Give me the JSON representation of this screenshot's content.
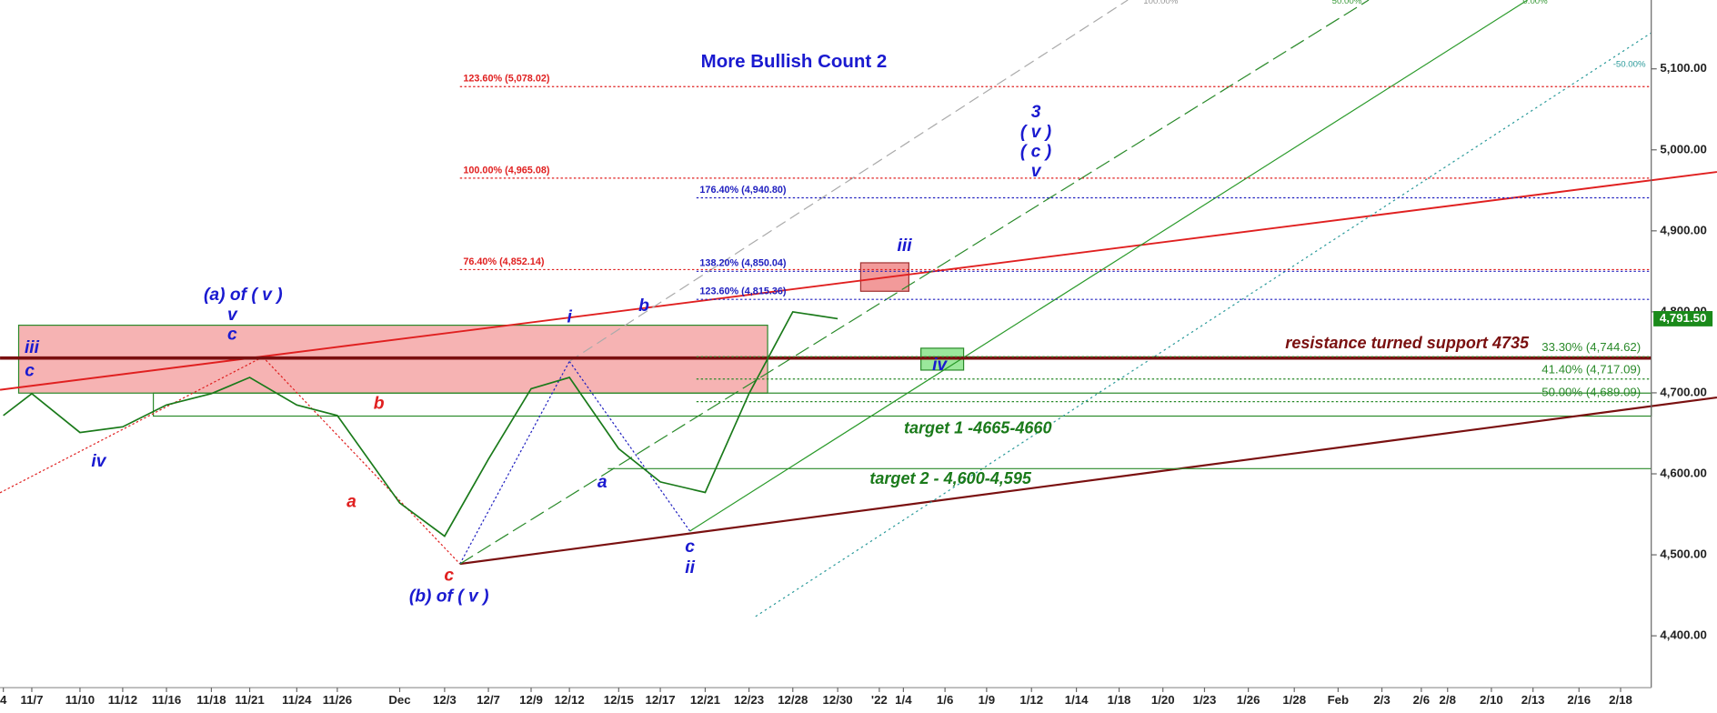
{
  "chart_data": {
    "type": "line",
    "title": "More Bullish Count 2",
    "categories": [
      "4",
      "11/7",
      "11/10",
      "11/12",
      "11/16",
      "11/18",
      "11/21",
      "11/24",
      "11/26",
      "Dec",
      "12/3",
      "12/7",
      "12/9",
      "12/12",
      "12/15",
      "12/17",
      "12/21",
      "12/23",
      "12/28",
      "12/30",
      "'22",
      "1/4",
      "1/6",
      "1/9",
      "1/12",
      "1/14",
      "1/18",
      "1/20",
      "1/23",
      "1/26",
      "1/28",
      "Feb",
      "2/3",
      "2/6",
      "2/8",
      "2/10",
      "2/13",
      "2/16",
      "2/18"
    ],
    "series": [
      {
        "name": "S&P 500",
        "color": "#1a7a1a",
        "values": [
          4672,
          4699,
          4651,
          4658,
          4685,
          4699,
          4719,
          4685,
          4672,
          4564,
          4523,
          4618,
          4705,
          4719,
          4631,
          4590,
          4577,
          4699,
          4800,
          4791.5,
          null,
          null,
          null,
          null,
          null,
          null,
          null,
          null,
          null,
          null,
          null,
          null,
          null,
          null,
          null,
          null,
          null,
          null,
          null
        ]
      }
    ],
    "last_price": {
      "value": 4791.5,
      "label": "4,791.50"
    },
    "ylim": [
      4336,
      5185
    ],
    "yticks": [
      {
        "value": 4400,
        "label": "4,400.00"
      },
      {
        "value": 4500,
        "label": "4,500.00"
      },
      {
        "value": 4600,
        "label": "4,600.00"
      },
      {
        "value": 4700,
        "label": "4,700.00"
      },
      {
        "value": 4800,
        "label": "4,800.00"
      },
      {
        "value": 4900,
        "label": "4,900.00"
      },
      {
        "value": 5000,
        "label": "5,000.00"
      },
      {
        "value": 5100,
        "label": "5,100.00"
      }
    ],
    "fib_levels": [
      {
        "label": "123.60% (5,078.02)",
        "value": 5078.02,
        "color": "#e02020"
      },
      {
        "label": "100.00% (4,965.08)",
        "value": 4965.08,
        "color": "#e02020"
      },
      {
        "label": "76.40% (4,852.14)",
        "value": 4852.14,
        "color": "#e02020"
      },
      {
        "label": "176.40% (4,940.80)",
        "value": 4940.8,
        "color": "#2020c0"
      },
      {
        "label": "138.20% (4,850.04)",
        "value": 4850.04,
        "color": "#2020c0"
      },
      {
        "label": "123.60% (4,815.36)",
        "value": 4815.36,
        "color": "#2020c0"
      },
      {
        "label": "33.30% (4,744.62)",
        "value": 4744.62,
        "color": "#2a8a2a"
      },
      {
        "label": "41.40% (4,717.09)",
        "value": 4717.09,
        "color": "#2a8a2a"
      },
      {
        "label": "50.00% (4,689.09)",
        "value": 4689.09,
        "color": "#2a8a2a"
      }
    ],
    "annotations": [
      {
        "text": "resistance turned support 4735",
        "color": "#7a1010"
      },
      {
        "text": "target 1 -4665-4660",
        "color": "#1a7a1a"
      },
      {
        "text": "target 2 - 4,600-4,595",
        "color": "#1a7a1a"
      }
    ],
    "channel_labels": [
      {
        "text": "100.00%",
        "color": "#999999"
      },
      {
        "text": "50.00%",
        "color": "#3a9a3a"
      },
      {
        "text": "0.00%",
        "color": "#3a9a3a"
      },
      {
        "text": "-50.00%",
        "color": "#2a9a9a"
      }
    ],
    "wave_labels": [
      {
        "text": "iii",
        "color": "#1a1ad0"
      },
      {
        "text": "c",
        "color": "#1a1ad0"
      },
      {
        "text": "iv",
        "color": "#1a1ad0"
      },
      {
        "text": "(a) of ( v )",
        "color": "#1a1ad0"
      },
      {
        "text": "v",
        "color": "#1a1ad0"
      },
      {
        "text": "c",
        "color": "#1a1ad0"
      },
      {
        "text": "i",
        "color": "#1a1ad0"
      },
      {
        "text": "b",
        "color": "#1a1ad0"
      },
      {
        "text": "a",
        "color": "#1a1ad0"
      },
      {
        "text": "c",
        "color": "#1a1ad0"
      },
      {
        "text": "ii",
        "color": "#1a1ad0"
      },
      {
        "text": "(b) of ( v )",
        "color": "#1a1ad0"
      },
      {
        "text": "iii",
        "color": "#1a1ad0"
      },
      {
        "text": "3",
        "color": "#1a1ad0"
      },
      {
        "text": "( v )",
        "color": "#1a1ad0"
      },
      {
        "text": "( c )",
        "color": "#1a1ad0"
      },
      {
        "text": "v",
        "color": "#1a1ad0"
      },
      {
        "text": "iv",
        "color": "#1a1ad0"
      },
      {
        "text": "b",
        "color": "#e02020"
      },
      {
        "text": "a",
        "color": "#e02020"
      },
      {
        "text": "c",
        "color": "#e02020"
      }
    ]
  }
}
